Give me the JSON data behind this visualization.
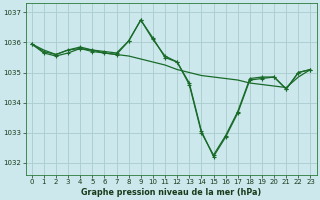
{
  "title": "Graphe pression niveau de la mer (hPa)",
  "background_color": "#cce8ec",
  "grid_color": "#aacccc",
  "line_color": "#1a6b2a",
  "xlim": [
    -0.5,
    23.5
  ],
  "ylim": [
    1031.6,
    1037.3
  ],
  "yticks": [
    1032,
    1033,
    1034,
    1035,
    1036,
    1037
  ],
  "xticks": [
    0,
    1,
    2,
    3,
    4,
    5,
    6,
    7,
    8,
    9,
    10,
    11,
    12,
    13,
    14,
    15,
    16,
    17,
    18,
    19,
    20,
    21,
    22,
    23
  ],
  "series": [
    {
      "y": [
        1035.95,
        1035.75,
        1035.6,
        1035.75,
        1035.8,
        1035.75,
        1035.65,
        1035.6,
        1035.55,
        1035.45,
        1035.35,
        1035.25,
        1035.1,
        1035.0,
        1034.9,
        1034.85,
        1034.8,
        1034.75,
        1034.65,
        1034.6,
        1034.55,
        1034.5,
        1034.85,
        1035.1
      ],
      "marker": false
    },
    {
      "y": [
        1035.95,
        1035.7,
        1035.6,
        1035.75,
        1035.85,
        1035.75,
        1035.7,
        1035.65,
        1036.05,
        1036.75,
        1036.1,
        1035.55,
        1035.35,
        1034.65,
        1033.05,
        1032.2,
        1032.85,
        1033.65,
        1034.75,
        1034.8,
        1034.85,
        1034.45,
        1035.0,
        1035.1
      ],
      "marker": true
    },
    {
      "y": [
        1035.95,
        1035.65,
        1035.55,
        1035.65,
        1035.8,
        1035.7,
        1035.65,
        1035.6,
        1036.05,
        1036.75,
        1036.15,
        1035.5,
        1035.35,
        1034.6,
        1033.0,
        1032.25,
        1032.9,
        1033.7,
        1034.8,
        1034.85,
        1034.85,
        1034.45,
        1035.0,
        1035.1
      ],
      "marker": true
    }
  ],
  "marker_style": "+",
  "markersize": 3.5,
  "linewidth": 0.9,
  "tick_fontsize": 5.0,
  "xlabel_fontsize": 5.8,
  "figsize": [
    3.2,
    2.0
  ],
  "dpi": 100
}
